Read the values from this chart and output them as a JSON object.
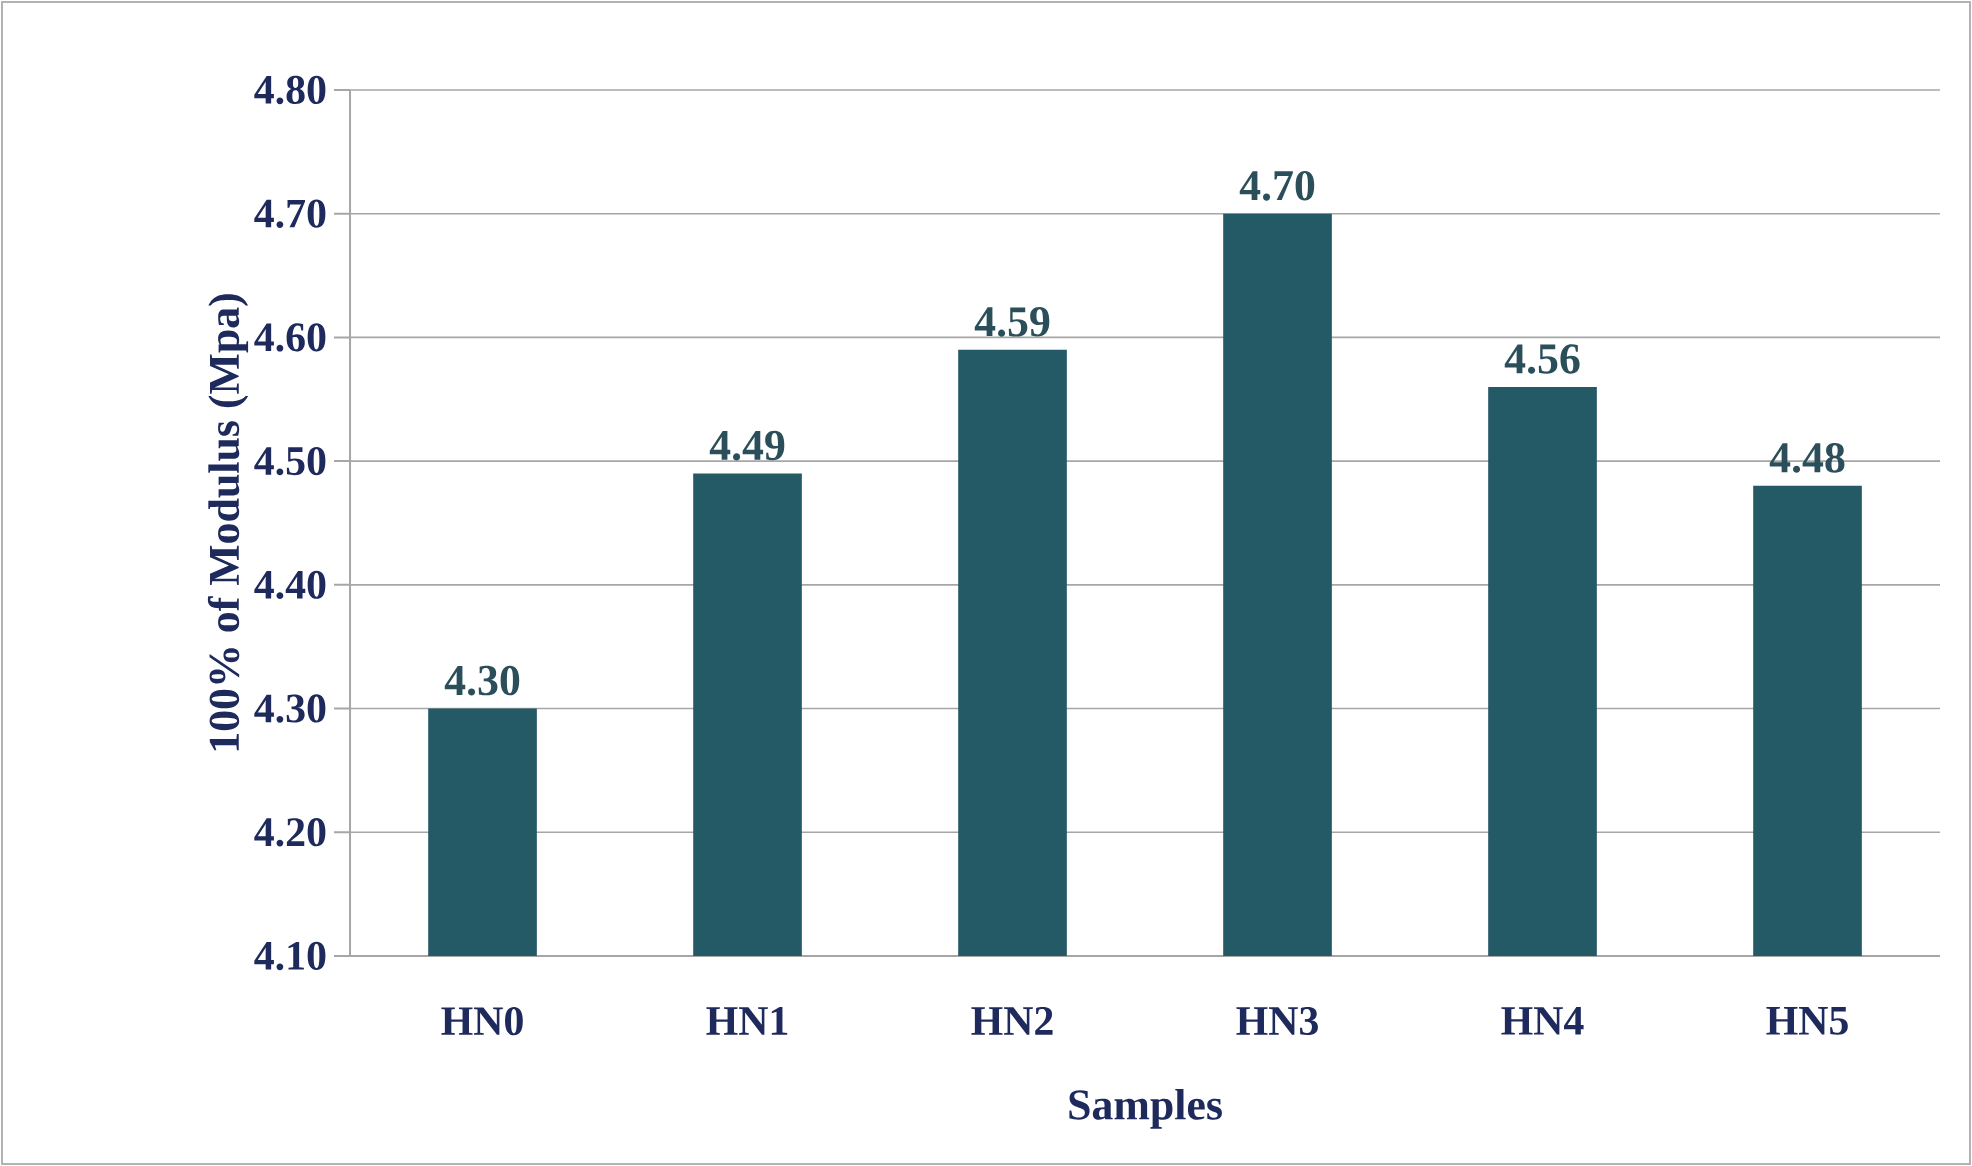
{
  "chart_data": {
    "type": "bar",
    "xlabel": "Samples",
    "ylabel": "100% of Modulus (Mpa)",
    "categories": [
      "HN0",
      "HN1",
      "HN2",
      "HN3",
      "HN4",
      "HN5"
    ],
    "values": [
      4.3,
      4.49,
      4.59,
      4.7,
      4.56,
      4.48
    ],
    "value_labels": [
      "4.30",
      "4.49",
      "4.59",
      "4.70",
      "4.56",
      "4.48"
    ],
    "color": "#245966",
    "ylim": [
      4.1,
      4.8
    ],
    "yticks": [
      {
        "value": 4.1,
        "label": "4.10"
      },
      {
        "value": 4.2,
        "label": "4.20"
      },
      {
        "value": 4.3,
        "label": "4.30"
      },
      {
        "value": 4.4,
        "label": "4.40"
      },
      {
        "value": 4.5,
        "label": "4.50"
      },
      {
        "value": 4.6,
        "label": "4.60"
      },
      {
        "value": 4.7,
        "label": "4.70"
      },
      {
        "value": 4.8,
        "label": "4.80"
      }
    ],
    "grid": "y"
  }
}
